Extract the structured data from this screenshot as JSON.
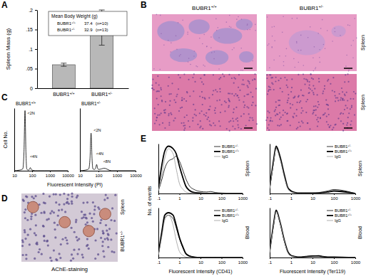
{
  "panel_labels": [
    "A",
    "B",
    "C",
    "D",
    "E"
  ],
  "chart_data": [
    {
      "type": "bar",
      "categories": [
        "BUBR1+/+",
        "BUBR1+/-"
      ],
      "values": [
        0.06,
        0.155
      ],
      "errors": [
        0.004,
        0.045
      ],
      "color": "#b8b8b8",
      "ylabel": "Spleen Mass (g)",
      "ylim": [
        0,
        0.2
      ],
      "yticks": [
        0,
        {
          "value": 0.05,
          "label": ".05"
        },
        {
          "value": 0.1,
          "label": ".1"
        },
        {
          "value": 0.15,
          "label": ".15"
        },
        {
          "value": 0.2,
          "label": ".2"
        }
      ],
      "inset": {
        "title": "Mean Body Weight (g)",
        "rows": [
          {
            "label": "BUBR1+/+",
            "value": 37.4,
            "n": "(n=10)"
          },
          {
            "label": "BUBR1+/-",
            "value": 32.9,
            "n": "(n=13)"
          }
        ]
      }
    },
    {
      "type": "line",
      "title": "BUBR1+/+",
      "xlabel": "Fluorescent Intensity (PI)",
      "ylabel": "Cell No.",
      "log": "x",
      "tick_labels": "x",
      "x": [
        10,
        20,
        30,
        35,
        40,
        45,
        50,
        60,
        70,
        80,
        90,
        100,
        150,
        200,
        500,
        1000,
        10000
      ],
      "series": [
        {
          "color": "#000000",
          "line_style": "solid",
          "values": [
            0,
            1,
            3,
            30,
            96,
            30,
            3,
            1,
            2,
            5,
            2,
            1,
            0,
            0,
            0,
            0,
            0
          ]
        }
      ],
      "xlim": [
        10,
        10000
      ],
      "xticks": [
        10,
        100,
        1000,
        10000
      ],
      "ylim": [
        0,
        100
      ],
      "yticks": [],
      "annotations": [
        {
          "text": "<2N",
          "x": 55,
          "y": 90
        },
        {
          "text": "<4N",
          "x": 75,
          "y": 20
        }
      ]
    },
    {
      "type": "line",
      "title": "BUBR1+/-",
      "log": "x",
      "tick_labels": "x",
      "x": [
        10,
        20,
        30,
        35,
        40,
        45,
        50,
        60,
        70,
        80,
        90,
        100,
        150,
        200,
        500,
        1000,
        10000
      ],
      "series": [
        {
          "color": "#000000",
          "line_style": "solid",
          "values": [
            0,
            1,
            3,
            20,
            60,
            20,
            3,
            2,
            4,
            10,
            4,
            2,
            3,
            4,
            0,
            0,
            0
          ]
        }
      ],
      "xlim": [
        10,
        10000
      ],
      "xticks": [
        10,
        100,
        1000,
        10000
      ],
      "ylim": [
        0,
        100
      ],
      "yticks": [],
      "annotations": [
        {
          "text": "<2N",
          "x": 55,
          "y": 62
        },
        {
          "text": "<4N",
          "x": 75,
          "y": 25
        },
        {
          "text": "<8N",
          "x": 180,
          "y": 13
        }
      ]
    },
    {
      "type": "line",
      "subtitle": "Spleen",
      "ylabel": "No. of events",
      "log": "x",
      "tick_labels": "x",
      "legend": "upper right",
      "x": [
        0.1,
        0.15,
        0.2,
        0.3,
        0.5,
        0.7,
        1,
        1.5,
        2,
        3,
        5,
        10,
        20,
        30,
        50,
        100,
        1000
      ],
      "series": [
        {
          "name": "BUBR1+/-",
          "color": "#000000",
          "line_style": "solid",
          "values": [
            5,
            30,
            50,
            65,
            70,
            75,
            65,
            45,
            30,
            15,
            8,
            4,
            3,
            4,
            2,
            1,
            0
          ]
        },
        {
          "name": "BUBR1+/+",
          "color": "#000000",
          "line_style": "bold",
          "values": [
            10,
            60,
            85,
            95,
            90,
            80,
            55,
            30,
            15,
            6,
            2,
            1,
            0,
            0,
            0,
            0,
            0
          ]
        },
        {
          "name": "IgG",
          "color": "#999999",
          "line_style": "solid",
          "values": [
            5,
            40,
            70,
            90,
            80,
            50,
            20,
            8,
            3,
            1,
            0,
            0,
            0,
            0,
            0,
            0,
            0
          ]
        }
      ],
      "xlim": [
        0.1,
        1000
      ],
      "xticks": [
        {
          "value": 0.1,
          "label": ".1"
        },
        1,
        10,
        100,
        1000
      ],
      "ylim": [
        0,
        100
      ],
      "yticks": []
    },
    {
      "type": "line",
      "subtitle": "Blood",
      "xlabel": "Fluorescent Intensity (CD41)",
      "log": "x",
      "tick_labels": "x",
      "legend": "upper right",
      "x": [
        0.1,
        0.15,
        0.2,
        0.3,
        0.5,
        0.7,
        1,
        1.5,
        2,
        3,
        5,
        10,
        20,
        30,
        50,
        100,
        1000
      ],
      "series": [
        {
          "name": "BUBR1+/-",
          "color": "#000000",
          "line_style": "solid",
          "values": [
            6,
            50,
            80,
            85,
            78,
            60,
            38,
            18,
            8,
            3,
            1,
            0,
            0,
            0,
            0,
            0,
            0
          ]
        },
        {
          "name": "BUBR1+/+",
          "color": "#000000",
          "line_style": "bold",
          "values": [
            8,
            55,
            85,
            90,
            85,
            65,
            40,
            20,
            8,
            3,
            1,
            0,
            0,
            0,
            0,
            0,
            0
          ]
        },
        {
          "name": "IgG",
          "color": "#999999",
          "line_style": "solid",
          "values": [
            5,
            45,
            75,
            85,
            65,
            35,
            12,
            4,
            1,
            0,
            0,
            0,
            0,
            0,
            0,
            0,
            0
          ]
        }
      ],
      "xlim": [
        0.1,
        1000
      ],
      "xticks": [
        {
          "value": 0.1,
          "label": ".1"
        },
        1,
        10,
        100,
        1000
      ],
      "ylim": [
        0,
        100
      ],
      "yticks": []
    },
    {
      "type": "line",
      "subtitle": "Spleen",
      "log": "x",
      "tick_labels": "x",
      "legend": "upper right",
      "x": [
        0.1,
        0.15,
        0.2,
        0.3,
        0.5,
        0.7,
        1,
        1.5,
        2,
        3,
        5,
        10,
        20,
        30,
        50,
        100,
        1000
      ],
      "series": [
        {
          "name": "BUBR1+/-",
          "color": "#000000",
          "line_style": "solid",
          "values": [
            10,
            60,
            92,
            72,
            33,
            12,
            5,
            2,
            1,
            1,
            1,
            1,
            2,
            3,
            5,
            8,
            0
          ]
        },
        {
          "name": "BUBR1+/+",
          "color": "#000000",
          "line_style": "bold",
          "values": [
            12,
            65,
            95,
            75,
            35,
            12,
            5,
            2,
            1,
            1,
            1,
            1,
            1,
            2,
            3,
            5,
            0
          ]
        },
        {
          "name": "IgG",
          "color": "#999999",
          "line_style": "solid",
          "values": [
            10,
            60,
            90,
            70,
            30,
            10,
            3,
            1,
            0,
            0,
            0,
            0,
            0,
            0,
            0,
            0,
            0
          ]
        }
      ],
      "xlim": [
        0.1,
        1000
      ],
      "xticks": [
        {
          "value": 0.1,
          "label": ".1"
        },
        1,
        10,
        100,
        1000
      ],
      "ylim": [
        0,
        100
      ],
      "yticks": []
    },
    {
      "type": "line",
      "subtitle": "Blood",
      "xlabel": "Fluorescent Intensity (Ter119)",
      "log": "x",
      "tick_labels": "x",
      "legend": "upper right",
      "x": [
        0.1,
        0.15,
        0.2,
        0.3,
        0.5,
        0.7,
        1,
        1.5,
        2,
        3,
        5,
        10,
        20,
        30,
        50,
        100,
        1000
      ],
      "series": [
        {
          "name": "BUBR1+/-",
          "color": "#000000",
          "line_style": "solid",
          "values": [
            11,
            64,
            93,
            71,
            31,
            11,
            4,
            2,
            1,
            1,
            2,
            3,
            4,
            2,
            1,
            1,
            0
          ]
        },
        {
          "name": "BUBR1+/+",
          "color": "#000000",
          "line_style": "bold",
          "values": [
            12,
            66,
            95,
            72,
            32,
            12,
            4,
            2,
            1,
            1,
            2,
            3,
            3,
            2,
            1,
            1,
            0
          ]
        },
        {
          "name": "IgG",
          "color": "#999999",
          "line_style": "solid",
          "values": [
            10,
            62,
            92,
            70,
            30,
            10,
            3,
            1,
            0,
            0,
            0,
            0,
            0,
            0,
            0,
            0,
            0
          ]
        }
      ],
      "xlim": [
        0.1,
        1000
      ],
      "xticks": [
        {
          "value": 0.1,
          "label": ".1"
        },
        1,
        10,
        100,
        1000
      ],
      "ylim": [
        0,
        100
      ],
      "yticks": []
    }
  ],
  "images": {
    "B": {
      "columns": [
        "BUBR1+/+",
        "BUBR1+/-"
      ],
      "rows": [
        "Spleen",
        "Spleen"
      ]
    },
    "D": {
      "caption": "AChE-staining",
      "side_labels": [
        "BUBR1+/-",
        "Spleen"
      ]
    }
  }
}
